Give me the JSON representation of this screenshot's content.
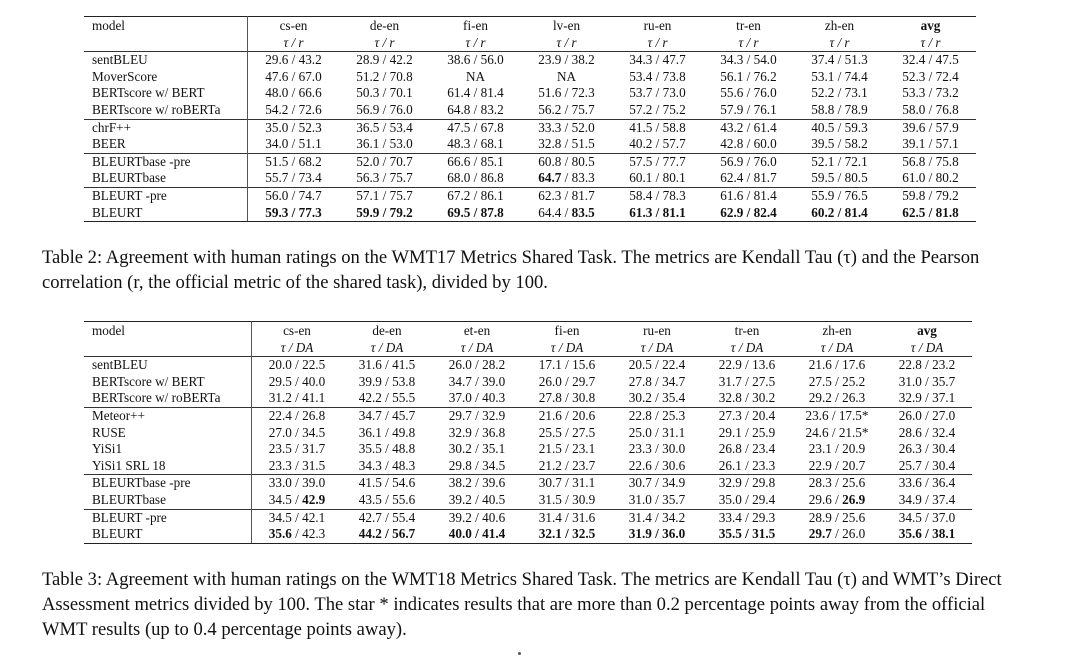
{
  "table2": {
    "header_model": "model",
    "columns": [
      "cs-en",
      "de-en",
      "fi-en",
      "lv-en",
      "ru-en",
      "tr-en",
      "zh-en",
      "avg"
    ],
    "subheader": "τ / r",
    "groups": [
      [
        {
          "model": "sentBLEU",
          "cells": [
            "29.6 / 43.2",
            "28.9 / 42.2",
            "38.6 / 56.0",
            "23.9 / 38.2",
            "34.3 / 47.7",
            "34.3 / 54.0",
            "37.4 / 51.3",
            "32.4 / 47.5"
          ]
        },
        {
          "model": "MoverScore",
          "cells": [
            "47.6 / 67.0",
            "51.2 / 70.8",
            "NA",
            "NA",
            "53.4 / 73.8",
            "56.1 / 76.2",
            "53.1 / 74.4",
            "52.3 / 72.4"
          ]
        },
        {
          "model": "BERTscore w/ BERT",
          "cells": [
            "48.0 / 66.6",
            "50.3 / 70.1",
            "61.4 / 81.4",
            "51.6 / 72.3",
            "53.7 / 73.0",
            "55.6 / 76.0",
            "52.2 / 73.1",
            "53.3 / 73.2"
          ]
        },
        {
          "model": "BERTscore w/ roBERTa",
          "cells": [
            "54.2 / 72.6",
            "56.9 / 76.0",
            "64.8 / 83.2",
            "56.2 / 75.7",
            "57.2 / 75.2",
            "57.9 / 76.1",
            "58.8 / 78.9",
            "58.0 / 76.8"
          ]
        }
      ],
      [
        {
          "model": "chrF++",
          "cells": [
            "35.0 / 52.3",
            "36.5 / 53.4",
            "47.5 / 67.8",
            "33.3 / 52.0",
            "41.5 / 58.8",
            "43.2 / 61.4",
            "40.5 / 59.3",
            "39.6 / 57.9"
          ]
        },
        {
          "model": "BEER",
          "cells": [
            "34.0 / 51.1",
            "36.1 / 53.0",
            "48.3 / 68.1",
            "32.8 / 51.5",
            "40.2 / 57.7",
            "42.8 / 60.0",
            "39.5 / 58.2",
            "39.1 / 57.1"
          ]
        }
      ],
      [
        {
          "model": "BLEURTbase -pre",
          "cells": [
            "51.5 / 68.2",
            "52.0 / 70.7",
            "66.6 / 85.1",
            "60.8 / 80.5",
            "57.5 / 77.7",
            "56.9 / 76.0",
            "52.1 / 72.1",
            "56.8 / 75.8"
          ]
        },
        {
          "model": "BLEURTbase",
          "cells": [
            "55.7 / 73.4",
            "56.3 / 75.7",
            "68.0 / 86.8",
            "64.7 / 83.3",
            "60.1 / 80.1",
            "62.4 / 81.7",
            "59.5 / 80.5",
            "61.0 / 80.2"
          ]
        }
      ],
      [
        {
          "model": "BLEURT -pre",
          "cells": [
            "56.0 / 74.7",
            "57.1 / 75.7",
            "67.2 / 86.1",
            "62.3 / 81.7",
            "58.4 / 78.3",
            "61.6 / 81.4",
            "55.9 / 76.5",
            "59.8 / 79.2"
          ]
        },
        {
          "model": "BLEURT",
          "cells": [
            "59.3 / 77.3",
            "59.9 / 79.2",
            "69.5 / 87.8",
            "64.4 / 83.5",
            "61.3 / 81.1",
            "62.9 / 82.4",
            "60.2 / 81.4",
            "62.5 / 81.8"
          ]
        }
      ]
    ],
    "bold": [
      [
        2,
        1,
        3,
        "left"
      ],
      [
        3,
        1,
        0,
        "both"
      ],
      [
        3,
        1,
        1,
        "both"
      ],
      [
        3,
        1,
        2,
        "both"
      ],
      [
        3,
        1,
        3,
        "right"
      ],
      [
        3,
        1,
        4,
        "both"
      ],
      [
        3,
        1,
        5,
        "both"
      ],
      [
        3,
        1,
        6,
        "both"
      ],
      [
        3,
        1,
        7,
        "both"
      ]
    ],
    "caption": "Table 2: Agreement with human ratings on the WMT17 Metrics Shared Task. The metrics are Kendall Tau (τ) and the Pearson correlation (r, the official metric of the shared task), divided by 100."
  },
  "table3": {
    "header_model": "model",
    "columns": [
      "cs-en",
      "de-en",
      "et-en",
      "fi-en",
      "ru-en",
      "tr-en",
      "zh-en",
      "avg"
    ],
    "subheader": "τ / DA",
    "groups": [
      [
        {
          "model": "sentBLEU",
          "cells": [
            "20.0 / 22.5",
            "31.6 / 41.5",
            "26.0 / 28.2",
            "17.1 / 15.6",
            "20.5 / 22.4",
            "22.9 / 13.6",
            "21.6 / 17.6",
            "22.8 / 23.2"
          ]
        },
        {
          "model": "BERTscore w/ BERT",
          "cells": [
            "29.5 / 40.0",
            "39.9 / 53.8",
            "34.7 / 39.0",
            "26.0 / 29.7",
            "27.8 / 34.7",
            "31.7 / 27.5",
            "27.5 / 25.2",
            "31.0 / 35.7"
          ]
        },
        {
          "model": "BERTscore w/ roBERTa",
          "cells": [
            "31.2 / 41.1",
            "42.2 / 55.5",
            "37.0 / 40.3",
            "27.8 / 30.8",
            "30.2 / 35.4",
            "32.8 / 30.2",
            "29.2 / 26.3",
            "32.9 / 37.1"
          ]
        }
      ],
      [
        {
          "model": "Meteor++",
          "cells": [
            "22.4 / 26.8",
            "34.7 / 45.7",
            "29.7 / 32.9",
            "21.6 / 20.6",
            "22.8 / 25.3",
            "27.3 / 20.4",
            "23.6 / 17.5*",
            "26.0 / 27.0"
          ]
        },
        {
          "model": "RUSE",
          "cells": [
            "27.0 / 34.5",
            "36.1 / 49.8",
            "32.9 / 36.8",
            "25.5 / 27.5",
            "25.0 / 31.1",
            "29.1 / 25.9",
            "24.6 / 21.5*",
            "28.6 / 32.4"
          ]
        },
        {
          "model": "YiSi1",
          "cells": [
            "23.5 / 31.7",
            "35.5 / 48.8",
            "30.2 / 35.1",
            "21.5 / 23.1",
            "23.3 / 30.0",
            "26.8 / 23.4",
            "23.1 / 20.9",
            "26.3 / 30.4"
          ]
        },
        {
          "model": "YiSi1 SRL 18",
          "cells": [
            "23.3 / 31.5",
            "34.3 / 48.3",
            "29.8 / 34.5",
            "21.2 / 23.7",
            "22.6 / 30.6",
            "26.1 / 23.3",
            "22.9 / 20.7",
            "25.7 / 30.4"
          ]
        }
      ],
      [
        {
          "model": "BLEURTbase -pre",
          "cells": [
            "33.0 / 39.0",
            "41.5 / 54.6",
            "38.2 / 39.6",
            "30.7 / 31.1",
            "30.7 / 34.9",
            "32.9 / 29.8",
            "28.3 / 25.6",
            "33.6 / 36.4"
          ]
        },
        {
          "model": "BLEURTbase",
          "cells": [
            "34.5 / 42.9",
            "43.5 / 55.6",
            "39.2 / 40.5",
            "31.5 / 30.9",
            "31.0 / 35.7",
            "35.0 / 29.4",
            "29.6 / 26.9",
            "34.9 / 37.4"
          ]
        }
      ],
      [
        {
          "model": "BLEURT -pre",
          "cells": [
            "34.5 / 42.1",
            "42.7 / 55.4",
            "39.2 / 40.6",
            "31.4 / 31.6",
            "31.4 / 34.2",
            "33.4 / 29.3",
            "28.9 / 25.6",
            "34.5 / 37.0"
          ]
        },
        {
          "model": "BLEURT",
          "cells": [
            "35.6 / 42.3",
            "44.2 / 56.7",
            "40.0 / 41.4",
            "32.1 / 32.5",
            "31.9 / 36.0",
            "35.5 / 31.5",
            "29.7 / 26.0",
            "35.6 / 38.1"
          ]
        }
      ]
    ],
    "bold": [
      [
        2,
        1,
        0,
        "right"
      ],
      [
        2,
        1,
        6,
        "right"
      ],
      [
        3,
        1,
        0,
        "left"
      ],
      [
        3,
        1,
        1,
        "both"
      ],
      [
        3,
        1,
        2,
        "both"
      ],
      [
        3,
        1,
        3,
        "both"
      ],
      [
        3,
        1,
        4,
        "both"
      ],
      [
        3,
        1,
        5,
        "both"
      ],
      [
        3,
        1,
        6,
        "left"
      ],
      [
        3,
        1,
        7,
        "both"
      ]
    ],
    "caption": "Table 3: Agreement with human ratings on the WMT18 Metrics Shared Task. The metrics are Kendall Tau (τ) and WMT’s Direct Assessment metrics divided by 100. The star * indicates results that are more than 0.2 percentage points away from the official WMT results (up to 0.4 percentage points away)."
  }
}
